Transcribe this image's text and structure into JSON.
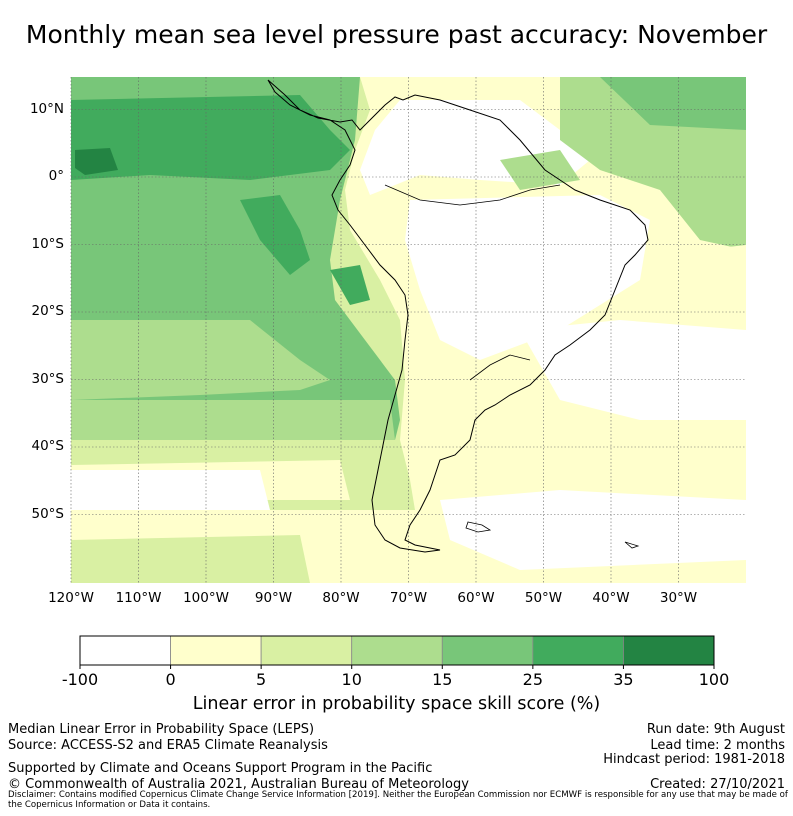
{
  "title": "Monthly mean sea level pressure past accuracy: November",
  "lat_labels": [
    "10°N",
    "0°",
    "10°S",
    "20°S",
    "30°S",
    "40°S",
    "50°S"
  ],
  "lat_values": [
    10,
    0,
    -10,
    -20,
    -30,
    -40,
    -50
  ],
  "lon_labels": [
    "120°W",
    "110°W",
    "100°W",
    "90°W",
    "80°W",
    "70°W",
    "60°W",
    "50°W",
    "40°W",
    "30°W"
  ],
  "lon_values": [
    -120,
    -110,
    -100,
    -90,
    -80,
    -70,
    -60,
    -50,
    -40,
    -30
  ],
  "colorbar": {
    "ticks": [
      "-100",
      "0",
      "5",
      "10",
      "15",
      "25",
      "35",
      "100"
    ],
    "colors": [
      "#ffffff",
      "#ffffcc",
      "#d9f0a3",
      "#addd8e",
      "#78c679",
      "#41ab5d",
      "#238443"
    ],
    "title": "Linear error in probability space skill score (%)"
  },
  "footer": {
    "left_line1": "Median Linear Error in Probability Space (LEPS)",
    "left_line2": "Source: ACCESS-S2 and ERA5 Climate Reanalysis",
    "supported": "Supported by Climate and Oceans Support Program in the Pacific",
    "copyright": "© Commonwealth of Australia 2021, Australian Bureau of Meteorology",
    "run_date": "Run date: 9th August",
    "lead_time": "Lead time: 2 months",
    "hindcast": "Hindcast period: 1981-2018",
    "created": "Created: 27/10/2021",
    "disclaimer": "Disclaimer: Contains modified Copernicus Climate Change Service Information [2019]. Neither the European Commission nor ECMWF is responsible for any use that may be made of the Copernicus Information or Data it contains."
  }
}
